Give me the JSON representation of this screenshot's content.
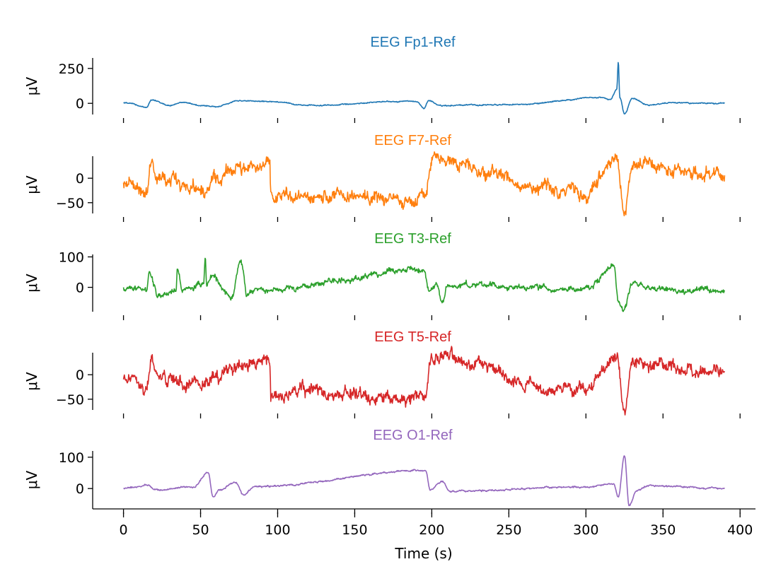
{
  "chart_data": {
    "type": "line",
    "layout": "stacked-panels",
    "shared_x": true,
    "xlabel": "Time (s)",
    "xlim": [
      -20,
      410
    ],
    "xticks": [
      0,
      50,
      100,
      150,
      200,
      250,
      300,
      350,
      400
    ],
    "x_start": 0,
    "x_end": 390,
    "grid": false,
    "legend": "none",
    "panels": [
      {
        "title": "EEG Fp1-Ref",
        "ylabel": "μV",
        "color": "#1f77b4",
        "ylim": [
          -80,
          325
        ],
        "yticks": [
          0,
          250
        ],
        "noise": 3,
        "events": [
          {
            "x": 3,
            "value": 4
          },
          {
            "x": 15,
            "value": -30
          },
          {
            "x": 18,
            "value": 22
          },
          {
            "x": 30,
            "value": -12
          },
          {
            "x": 40,
            "value": 10
          },
          {
            "x": 50,
            "value": -18
          },
          {
            "x": 60,
            "value": -25
          },
          {
            "x": 75,
            "value": 20
          },
          {
            "x": 95,
            "value": 12
          },
          {
            "x": 120,
            "value": -14
          },
          {
            "x": 190,
            "value": 15
          },
          {
            "x": 195,
            "value": -35
          },
          {
            "x": 198,
            "value": 25
          },
          {
            "x": 205,
            "value": -15
          },
          {
            "x": 250,
            "value": -10
          },
          {
            "x": 310,
            "value": 40
          },
          {
            "x": 316,
            "value": 30
          },
          {
            "x": 320,
            "value": 100
          },
          {
            "x": 321,
            "value": 295
          },
          {
            "x": 322,
            "value": 40
          },
          {
            "x": 325,
            "value": -75
          },
          {
            "x": 330,
            "value": 35
          },
          {
            "x": 340,
            "value": -10
          },
          {
            "x": 360,
            "value": 5
          },
          {
            "x": 390,
            "value": 0
          }
        ]
      },
      {
        "title": "EEG F7-Ref",
        "ylabel": "μV",
        "color": "#ff7f0e",
        "ylim": [
          -72,
          45
        ],
        "yticks": [
          -50,
          0
        ],
        "noise": 10,
        "events": [
          {
            "x": 5,
            "value": -10
          },
          {
            "x": 15,
            "value": -30
          },
          {
            "x": 18,
            "value": 35
          },
          {
            "x": 22,
            "value": -5
          },
          {
            "x": 50,
            "value": -20
          },
          {
            "x": 75,
            "value": 20
          },
          {
            "x": 95,
            "value": 28
          },
          {
            "x": 95.5,
            "value": -35
          },
          {
            "x": 196,
            "value": -45
          },
          {
            "x": 200,
            "value": 35
          },
          {
            "x": 280,
            "value": -25
          },
          {
            "x": 300,
            "value": -30
          },
          {
            "x": 320,
            "value": 35
          },
          {
            "x": 325,
            "value": -68
          },
          {
            "x": 330,
            "value": 25
          },
          {
            "x": 390,
            "value": 5
          }
        ]
      },
      {
        "title": "EEG T3-Ref",
        "ylabel": "μV",
        "color": "#2ca02c",
        "ylim": [
          -80,
          108
        ],
        "yticks": [
          0,
          100
        ],
        "noise": 7,
        "events": [
          {
            "x": 0,
            "value": -5
          },
          {
            "x": 15,
            "value": -8
          },
          {
            "x": 17,
            "value": 48
          },
          {
            "x": 20,
            "value": 10
          },
          {
            "x": 22,
            "value": -25
          },
          {
            "x": 34,
            "value": -15
          },
          {
            "x": 35,
            "value": 55
          },
          {
            "x": 38,
            "value": -10
          },
          {
            "x": 52,
            "value": 15
          },
          {
            "x": 53,
            "value": 100
          },
          {
            "x": 54,
            "value": 5
          },
          {
            "x": 57,
            "value": 40
          },
          {
            "x": 70,
            "value": -35
          },
          {
            "x": 76,
            "value": 90
          },
          {
            "x": 80,
            "value": -30
          },
          {
            "x": 85,
            "value": -10
          },
          {
            "x": 195,
            "value": 60
          },
          {
            "x": 198,
            "value": -10
          },
          {
            "x": 203,
            "value": 10
          },
          {
            "x": 207,
            "value": -45
          },
          {
            "x": 210,
            "value": 5
          },
          {
            "x": 300,
            "value": -5
          },
          {
            "x": 318,
            "value": 75
          },
          {
            "x": 321,
            "value": -45
          },
          {
            "x": 324,
            "value": -75
          },
          {
            "x": 330,
            "value": 10
          },
          {
            "x": 340,
            "value": -5
          },
          {
            "x": 390,
            "value": -10
          }
        ]
      },
      {
        "title": "EEG T5-Ref",
        "ylabel": "μV",
        "color": "#d62728",
        "ylim": [
          -72,
          45
        ],
        "yticks": [
          -50,
          0
        ],
        "noise": 10,
        "events": [
          {
            "x": 5,
            "value": -10
          },
          {
            "x": 15,
            "value": -30
          },
          {
            "x": 18,
            "value": 35
          },
          {
            "x": 22,
            "value": -5
          },
          {
            "x": 50,
            "value": -20
          },
          {
            "x": 75,
            "value": 20
          },
          {
            "x": 95,
            "value": 28
          },
          {
            "x": 95.5,
            "value": -35
          },
          {
            "x": 196,
            "value": -45
          },
          {
            "x": 200,
            "value": 35
          },
          {
            "x": 280,
            "value": -25
          },
          {
            "x": 300,
            "value": -30
          },
          {
            "x": 320,
            "value": 35
          },
          {
            "x": 325,
            "value": -68
          },
          {
            "x": 330,
            "value": 25
          },
          {
            "x": 390,
            "value": 5
          }
        ]
      },
      {
        "title": "EEG O1-Ref",
        "ylabel": "μV",
        "color": "#9467bd",
        "ylim": [
          -65,
          120
        ],
        "yticks": [
          0,
          100
        ],
        "noise": 2,
        "events": [
          {
            "x": 0,
            "value": 0
          },
          {
            "x": 16,
            "value": 10
          },
          {
            "x": 20,
            "value": -5
          },
          {
            "x": 45,
            "value": 5
          },
          {
            "x": 55,
            "value": 50
          },
          {
            "x": 58,
            "value": -30
          },
          {
            "x": 62,
            "value": -5
          },
          {
            "x": 73,
            "value": 20
          },
          {
            "x": 78,
            "value": -20
          },
          {
            "x": 85,
            "value": 5
          },
          {
            "x": 196,
            "value": 58
          },
          {
            "x": 199,
            "value": -5
          },
          {
            "x": 207,
            "value": 22
          },
          {
            "x": 212,
            "value": -8
          },
          {
            "x": 300,
            "value": 5
          },
          {
            "x": 318,
            "value": 15
          },
          {
            "x": 321,
            "value": -25
          },
          {
            "x": 325,
            "value": 105
          },
          {
            "x": 328,
            "value": -55
          },
          {
            "x": 333,
            "value": -5
          },
          {
            "x": 340,
            "value": 10
          },
          {
            "x": 390,
            "value": 0
          }
        ]
      }
    ]
  }
}
